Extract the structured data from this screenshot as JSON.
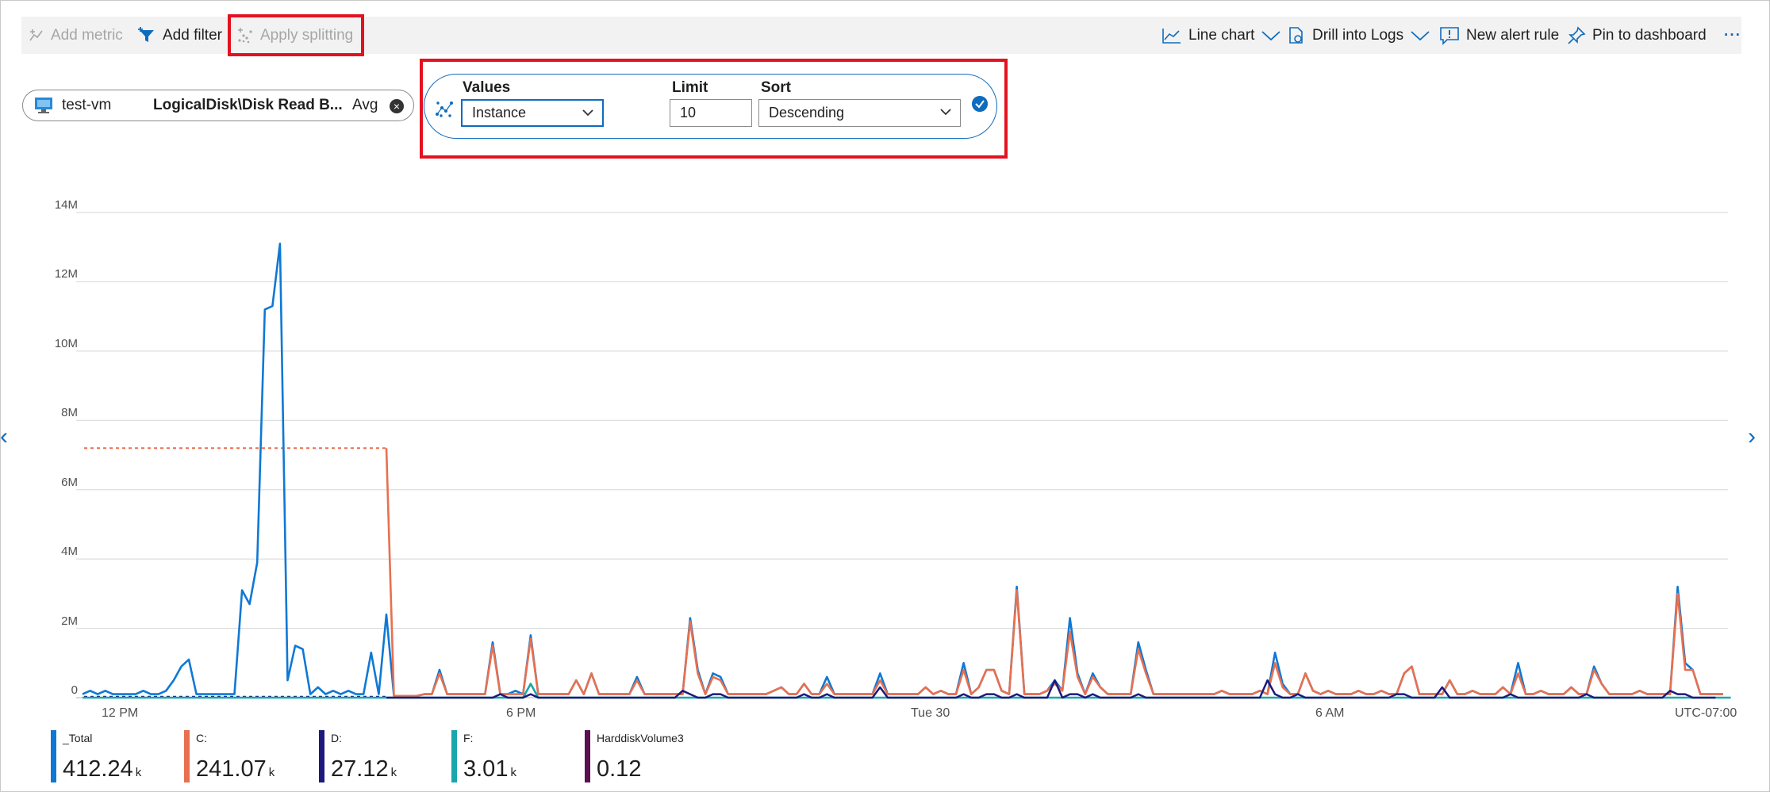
{
  "toolbar": {
    "add_metric": "Add metric",
    "add_filter": "Add filter",
    "apply_splitting": "Apply splitting",
    "line_chart": "Line chart",
    "drill_logs": "Drill into Logs",
    "new_alert": "New alert rule",
    "pin_dashboard": "Pin to dashboard",
    "more": "···"
  },
  "metric_pill": {
    "resource": "test-vm",
    "metric": "LogicalDisk\\Disk Read B...",
    "aggregation": "Avg"
  },
  "splitting": {
    "values_label": "Values",
    "values_selected": "Instance",
    "limit_label": "Limit",
    "limit_value": "10",
    "sort_label": "Sort",
    "sort_selected": "Descending"
  },
  "chart_data": {
    "type": "line",
    "y_ticks": [
      "14M",
      "12M",
      "10M",
      "8M",
      "6M",
      "4M",
      "2M",
      "0"
    ],
    "x_ticks": [
      "12 PM",
      "6 PM",
      "Tue 30",
      "6 AM"
    ],
    "timezone": "UTC-07:00",
    "ylim": [
      0,
      14000000
    ],
    "grid": true,
    "series": [
      {
        "name": "_Total",
        "color": "#0f78d4",
        "values": [
          0.1,
          0.2,
          0.1,
          0.2,
          0.1,
          0.1,
          0.1,
          0.1,
          0.2,
          0.1,
          0.1,
          0.2,
          0.5,
          0.9,
          1.1,
          0.1,
          0.1,
          0.1,
          0.1,
          0.1,
          0.1,
          3.1,
          2.7,
          3.9,
          11.2,
          11.3,
          13.1,
          0.5,
          1.5,
          1.4,
          0.1,
          0.3,
          0.1,
          0.2,
          0.1,
          0.2,
          0.1,
          0.1,
          1.3,
          0.1,
          2.4,
          0.05,
          0.05,
          0.05,
          0.05,
          0.1,
          0.1,
          0.8,
          0.1,
          0.1,
          0.1,
          0.1,
          0.1,
          0.1,
          1.6,
          0.1,
          0.1,
          0.2,
          0.1,
          1.8,
          0.1,
          0.1,
          0.1,
          0.1,
          0.1,
          0.5,
          0.1,
          0.7,
          0.1,
          0.1,
          0.1,
          0.1,
          0.1,
          0.6,
          0.1,
          0.1,
          0.1,
          0.1,
          0.1,
          0.1,
          2.3,
          0.8,
          0.1,
          0.7,
          0.6,
          0.1,
          0.1,
          0.1,
          0.1,
          0.1,
          0.1,
          0.2,
          0.3,
          0.1,
          0.1,
          0.4,
          0.1,
          0.1,
          0.6,
          0.1,
          0.1,
          0.1,
          0.1,
          0.1,
          0.1,
          0.7,
          0.1,
          0.1,
          0.1,
          0.1,
          0.1,
          0.3,
          0.1,
          0.2,
          0.1,
          0.1,
          1.0,
          0.1,
          0.3,
          0.8,
          0.8,
          0.2,
          0.1,
          3.2,
          0.1,
          0.1,
          0.1,
          0.2,
          0.5,
          0.2,
          2.3,
          0.7,
          0.1,
          0.7,
          0.3,
          0.1,
          0.1,
          0.1,
          0.1,
          1.6,
          0.8,
          0.1,
          0.1,
          0.1,
          0.1,
          0.1,
          0.1,
          0.1,
          0.1,
          0.1,
          0.2,
          0.1,
          0.1,
          0.1,
          0.1,
          0.2,
          0.1,
          1.3,
          0.4,
          0.1,
          0.1,
          0.7,
          0.2,
          0.1,
          0.2,
          0.1,
          0.1,
          0.1,
          0.2,
          0.1,
          0.1,
          0.2,
          0.1,
          0.1,
          0.7,
          0.9,
          0.1,
          0.1,
          0.1,
          0.1,
          0.5,
          0.1,
          0.1,
          0.2,
          0.1,
          0.1,
          0.1,
          0.3,
          0.1,
          1.0,
          0.1,
          0.1,
          0.2,
          0.1,
          0.1,
          0.1,
          0.3,
          0.1,
          0.1,
          0.9,
          0.4,
          0.1,
          0.1,
          0.1,
          0.1,
          0.2,
          0.1,
          0.1,
          0.1,
          0.1,
          3.2,
          1.0,
          0.8,
          0.1,
          0.1,
          0.1,
          0.1
        ]
      },
      {
        "name": "C:",
        "color": "#e8704f",
        "values": [
          null,
          null,
          null,
          null,
          null,
          null,
          null,
          null,
          null,
          null,
          null,
          null,
          null,
          null,
          null,
          null,
          null,
          null,
          null,
          null,
          null,
          null,
          null,
          null,
          null,
          null,
          null,
          null,
          null,
          null,
          null,
          null,
          null,
          null,
          null,
          null,
          null,
          null,
          null,
          null,
          7.2,
          0.05,
          0.05,
          0.05,
          0.05,
          0.1,
          0.1,
          0.7,
          0.1,
          0.1,
          0.1,
          0.1,
          0.1,
          0.1,
          1.5,
          0.1,
          0.1,
          0.1,
          0.1,
          1.7,
          0.1,
          0.1,
          0.1,
          0.1,
          0.1,
          0.5,
          0.1,
          0.7,
          0.1,
          0.1,
          0.1,
          0.1,
          0.1,
          0.5,
          0.1,
          0.1,
          0.1,
          0.1,
          0.1,
          0.1,
          2.2,
          0.7,
          0.1,
          0.6,
          0.5,
          0.1,
          0.1,
          0.1,
          0.1,
          0.1,
          0.1,
          0.2,
          0.3,
          0.1,
          0.1,
          0.4,
          0.1,
          0.1,
          0.4,
          0.1,
          0.1,
          0.1,
          0.1,
          0.1,
          0.1,
          0.5,
          0.1,
          0.1,
          0.1,
          0.1,
          0.1,
          0.3,
          0.1,
          0.2,
          0.1,
          0.1,
          0.8,
          0.1,
          0.3,
          0.8,
          0.8,
          0.2,
          0.1,
          3.1,
          0.1,
          0.1,
          0.1,
          0.2,
          0.4,
          0.2,
          1.9,
          0.6,
          0.1,
          0.6,
          0.3,
          0.1,
          0.1,
          0.1,
          0.1,
          1.4,
          0.7,
          0.1,
          0.1,
          0.1,
          0.1,
          0.1,
          0.1,
          0.1,
          0.1,
          0.1,
          0.2,
          0.1,
          0.1,
          0.1,
          0.1,
          0.2,
          0.1,
          1.0,
          0.3,
          0.1,
          0.1,
          0.7,
          0.2,
          0.1,
          0.2,
          0.1,
          0.1,
          0.1,
          0.2,
          0.1,
          0.1,
          0.2,
          0.1,
          0.1,
          0.7,
          0.9,
          0.1,
          0.1,
          0.1,
          0.1,
          0.5,
          0.1,
          0.1,
          0.2,
          0.1,
          0.1,
          0.1,
          0.3,
          0.1,
          0.7,
          0.1,
          0.1,
          0.2,
          0.1,
          0.1,
          0.1,
          0.3,
          0.1,
          0.1,
          0.8,
          0.4,
          0.1,
          0.1,
          0.1,
          0.1,
          0.2,
          0.1,
          0.1,
          0.1,
          0.1,
          3.0,
          0.8,
          0.8,
          0.1,
          0.1,
          0.1,
          0.1
        ]
      },
      {
        "name": "D:",
        "color": "#1c1a7a",
        "values": [
          0,
          0,
          0,
          0,
          0,
          0,
          0,
          0,
          0,
          0,
          0,
          0,
          0,
          0,
          0,
          0,
          0,
          0,
          0,
          0,
          0,
          0,
          0,
          0,
          0,
          0,
          0,
          0,
          0,
          0,
          0,
          0,
          0,
          0,
          0,
          0,
          0,
          0,
          0,
          0,
          0,
          0,
          0,
          0,
          0,
          0,
          0,
          0,
          0,
          0,
          0,
          0,
          0,
          0,
          0,
          0.1,
          0,
          0,
          0,
          0.1,
          0,
          0,
          0,
          0,
          0,
          0,
          0,
          0,
          0,
          0,
          0,
          0,
          0,
          0,
          0,
          0,
          0,
          0,
          0,
          0.2,
          0.1,
          0,
          0,
          0.1,
          0.1,
          0,
          0,
          0,
          0,
          0,
          0,
          0,
          0,
          0,
          0,
          0.1,
          0,
          0,
          0.1,
          0,
          0,
          0,
          0,
          0,
          0,
          0.3,
          0,
          0,
          0,
          0,
          0,
          0,
          0,
          0,
          0,
          0,
          0.1,
          0,
          0,
          0.1,
          0.1,
          0,
          0,
          0.1,
          0,
          0,
          0,
          0,
          0.5,
          0,
          0.1,
          0.1,
          0,
          0.1,
          0,
          0,
          0,
          0,
          0,
          0.1,
          0,
          0,
          0,
          0,
          0,
          0,
          0,
          0,
          0,
          0,
          0,
          0,
          0,
          0,
          0,
          0,
          0.5,
          0.1,
          0,
          0,
          0.1,
          0,
          0,
          0,
          0,
          0,
          0,
          0,
          0,
          0,
          0,
          0,
          0,
          0.1,
          0.1,
          0,
          0,
          0,
          0,
          0.3,
          0,
          0,
          0,
          0,
          0,
          0,
          0,
          0,
          0.1,
          0,
          0,
          0,
          0,
          0,
          0,
          0,
          0,
          0,
          0.1,
          0,
          0,
          0,
          0,
          0,
          0,
          0,
          0,
          0,
          0,
          0.2,
          0.1,
          0.1,
          0,
          0,
          0,
          0
        ]
      },
      {
        "name": "F:",
        "color": "#19a6ad",
        "values": [
          0,
          0,
          0,
          0,
          0,
          0,
          0,
          0,
          0,
          0,
          0,
          0,
          0,
          0,
          0,
          0,
          0,
          0,
          0,
          0,
          0,
          0,
          0,
          0,
          0,
          0,
          0,
          0,
          0,
          0,
          0,
          0,
          0,
          0,
          0,
          0,
          0,
          0,
          0,
          0,
          0,
          0,
          0,
          0,
          0,
          0,
          0,
          0,
          0,
          0,
          0,
          0,
          0,
          0,
          0,
          0,
          0,
          0,
          0,
          0.4,
          0,
          0,
          0,
          0,
          0,
          0,
          0,
          0,
          0,
          0,
          0,
          0,
          0,
          0,
          0,
          0,
          0,
          0,
          0,
          0,
          0,
          0,
          0,
          0,
          0,
          0,
          0,
          0,
          0,
          0,
          0,
          0,
          0,
          0,
          0,
          0,
          0,
          0,
          0,
          0,
          0,
          0,
          0,
          0,
          0,
          0,
          0,
          0,
          0,
          0,
          0,
          0,
          0,
          0,
          0,
          0,
          0,
          0,
          0,
          0,
          0,
          0,
          0,
          0,
          0,
          0,
          0,
          0,
          0,
          0,
          0,
          0,
          0,
          0,
          0,
          0,
          0,
          0,
          0,
          0,
          0,
          0,
          0,
          0,
          0,
          0,
          0,
          0,
          0,
          0,
          0,
          0,
          0,
          0,
          0,
          0,
          0,
          0,
          0,
          0,
          0,
          0,
          0,
          0,
          0,
          0,
          0,
          0,
          0,
          0,
          0,
          0,
          0,
          0,
          0,
          0,
          0,
          0,
          0,
          0,
          0,
          0,
          0,
          0,
          0,
          0,
          0,
          0,
          0,
          0,
          0,
          0,
          0,
          0,
          0,
          0,
          0,
          0,
          0,
          0,
          0,
          0,
          0,
          0,
          0,
          0,
          0,
          0,
          0,
          0,
          0,
          0,
          0,
          0,
          0,
          0,
          0,
          0
        ]
      },
      {
        "name": "HarddiskVolume3",
        "color": "#5a1051",
        "values": []
      }
    ],
    "legend": [
      {
        "name": "_Total",
        "value": "412.24",
        "unit": "k",
        "color": "#0f78d4"
      },
      {
        "name": "C:",
        "value": "241.07",
        "unit": "k",
        "color": "#e8704f"
      },
      {
        "name": "D:",
        "value": "27.12",
        "unit": "k",
        "color": "#1c1a7a"
      },
      {
        "name": "F:",
        "value": "3.01",
        "unit": "k",
        "color": "#19a6ad"
      },
      {
        "name": "HarddiskVolume3",
        "value": "0.12",
        "unit": "",
        "color": "#5a1051"
      }
    ]
  },
  "colors": {
    "accent": "#0f6cbd",
    "highlight_box": "#e3121f",
    "gridline": "#d6d6d6"
  },
  "icons": [
    "add-metric-icon",
    "add-filter-icon",
    "apply-splitting-icon",
    "line-chart-icon",
    "chevron-down-icon",
    "drill-logs-icon",
    "new-alert-icon",
    "pin-icon",
    "vm-icon",
    "close-icon",
    "splitting-icon",
    "check-icon"
  ]
}
